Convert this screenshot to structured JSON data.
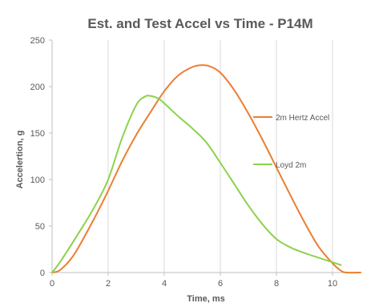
{
  "chart_data": {
    "type": "line",
    "title": "Est. and Test Accel vs Time - P14M",
    "xlabel": "Time, ms",
    "ylabel": "Accelertion, g",
    "xlim": [
      0,
      11
    ],
    "ylim": [
      0,
      250
    ],
    "x_ticks": [
      0,
      2,
      4,
      6,
      8,
      10
    ],
    "y_ticks": [
      0,
      50,
      100,
      150,
      200,
      250
    ],
    "vertical_grid": true,
    "horizontal_grid": false,
    "series": [
      {
        "name": "2m Hertz Accel",
        "color": "#ed7d31",
        "x": [
          0,
          0.3,
          0.8,
          1.5,
          2.0,
          2.5,
          3.0,
          3.5,
          4.0,
          4.5,
          5.0,
          5.3,
          5.6,
          6.0,
          6.5,
          7.0,
          7.5,
          8.0,
          8.5,
          9.0,
          9.5,
          10.0,
          10.3,
          10.5,
          11.0
        ],
        "y": [
          0,
          3,
          20,
          58,
          88,
          120,
          148,
          172,
          195,
          212,
          221,
          223,
          222,
          215,
          196,
          171,
          143,
          113,
          83,
          54,
          28,
          10,
          2,
          0,
          0
        ]
      },
      {
        "name": "Loyd 2m",
        "color": "#8cd24a",
        "x": [
          0,
          0.3,
          1.0,
          1.5,
          2.0,
          2.5,
          3.0,
          3.3,
          3.5,
          3.8,
          4.0,
          4.5,
          5.0,
          5.5,
          6.0,
          6.5,
          7.0,
          7.5,
          8.0,
          8.5,
          9.0,
          9.5,
          10.0,
          10.3
        ],
        "y": [
          0,
          12,
          45,
          70,
          100,
          145,
          180,
          189,
          190,
          187,
          182,
          168,
          155,
          140,
          118,
          95,
          72,
          52,
          36,
          27,
          21,
          16,
          11,
          8
        ]
      }
    ],
    "legend": [
      {
        "label": "2m Hertz Accel",
        "placement": "right, beside the Hertz curve"
      },
      {
        "label": "Loyd 2m",
        "placement": "right, beside the Loyd curve"
      }
    ]
  }
}
